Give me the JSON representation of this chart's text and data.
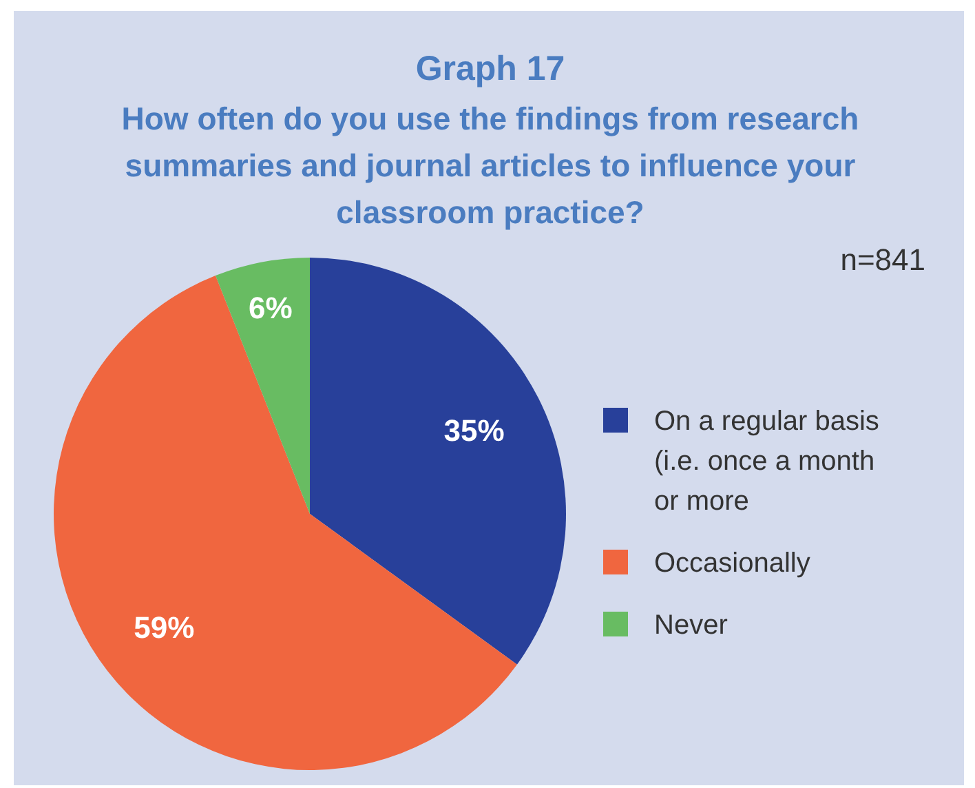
{
  "chart_data": {
    "type": "pie",
    "title": "Graph 17",
    "subtitle": "How often do you use the findings from research summaries and journal articles to influence your classroom practice?",
    "annotations": [
      "n=841"
    ],
    "categories": [
      "On a regular basis (i.e. once a month or more",
      "Occasionally",
      "Never"
    ],
    "values": [
      35,
      59,
      6
    ],
    "colors": [
      "#28409a",
      "#f0663f",
      "#68bc62"
    ],
    "value_labels": [
      "35%",
      "59%",
      "6%"
    ],
    "legend": "right"
  }
}
